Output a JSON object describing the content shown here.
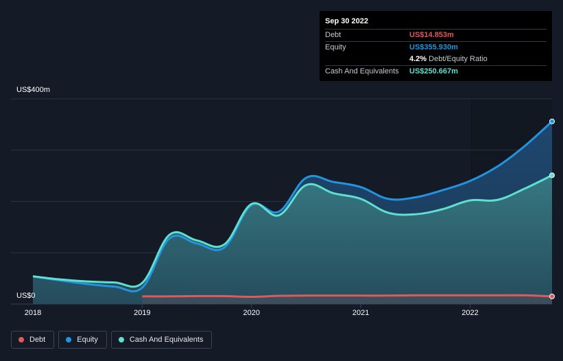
{
  "tooltip": {
    "date": "Sep 30 2022",
    "debt_label": "Debt",
    "debt_value": "US$14.853m",
    "equity_label": "Equity",
    "equity_value": "US$355.930m",
    "ratio_value": "4.2%",
    "ratio_label": "Debt/Equity Ratio",
    "cash_label": "Cash And Equivalents",
    "cash_value": "US$250.667m"
  },
  "colors": {
    "debt": "#e05a5a",
    "equity": "#2394df",
    "cash": "#5fe0cf",
    "background": "#151b26",
    "grid": "#2c333f"
  },
  "legend": [
    {
      "label": "Debt",
      "color": "#e05a5a"
    },
    {
      "label": "Equity",
      "color": "#2394df"
    },
    {
      "label": "Cash And Equivalents",
      "color": "#5fe0cf"
    }
  ],
  "chart_data": {
    "type": "area",
    "y_top_label": "US$400m",
    "y_bottom_label": "US$0",
    "ylim": [
      0,
      400
    ],
    "y_gridlines": [
      0,
      100,
      200,
      300,
      400
    ],
    "x_ticks": [
      "2018",
      "2019",
      "2020",
      "2021",
      "2022"
    ],
    "x_tick_values": [
      2018.0,
      2019.0,
      2020.0,
      2021.0,
      2022.0
    ],
    "xlim": [
      2018.0,
      2022.75
    ],
    "series": [
      {
        "name": "Equity",
        "x": [
          2018.0,
          2018.25,
          2018.5,
          2018.75,
          2019.0,
          2019.25,
          2019.5,
          2019.75,
          2020.0,
          2020.25,
          2020.5,
          2020.75,
          2021.0,
          2021.25,
          2021.5,
          2021.75,
          2022.0,
          2022.25,
          2022.5,
          2022.75
        ],
        "values": [
          54,
          46,
          39,
          34,
          32,
          128,
          118,
          110,
          193,
          180,
          246,
          238,
          228,
          205,
          208,
          222,
          240,
          268,
          308,
          356
        ]
      },
      {
        "name": "Cash And Equivalents",
        "x": [
          2018.0,
          2018.25,
          2018.5,
          2018.75,
          2019.0,
          2019.25,
          2019.5,
          2019.75,
          2020.0,
          2020.25,
          2020.5,
          2020.75,
          2021.0,
          2021.25,
          2021.5,
          2021.75,
          2022.0,
          2022.25,
          2022.5,
          2022.75
        ],
        "values": [
          54,
          48,
          44,
          42,
          41,
          135,
          124,
          116,
          195,
          173,
          232,
          216,
          205,
          178,
          175,
          185,
          202,
          203,
          225,
          251
        ]
      },
      {
        "name": "Debt",
        "x": [
          2019.0,
          2019.25,
          2019.5,
          2019.75,
          2020.0,
          2020.25,
          2020.5,
          2020.75,
          2021.0,
          2021.25,
          2021.5,
          2021.75,
          2022.0,
          2022.25,
          2022.5,
          2022.75
        ],
        "values": [
          15,
          15,
          15.5,
          15.5,
          14,
          16,
          16.5,
          16.5,
          16.5,
          16.5,
          17,
          17,
          17,
          17,
          17,
          14.9
        ]
      }
    ]
  }
}
